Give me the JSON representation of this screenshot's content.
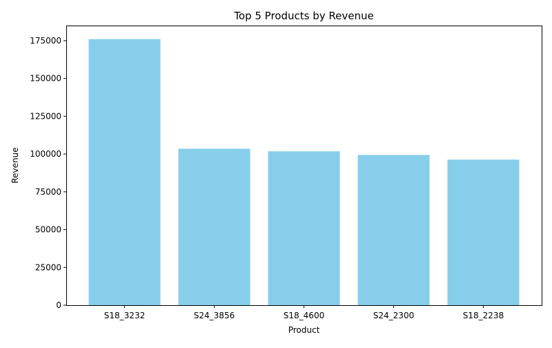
{
  "chart_data": {
    "type": "bar",
    "title": "Top 5 Products by Revenue",
    "xlabel": "Product",
    "ylabel": "Revenue",
    "categories": [
      "S18_3232",
      "S24_3856",
      "S18_4600",
      "S24_2300",
      "S18_2238"
    ],
    "values": [
      176000,
      103500,
      101800,
      99400,
      96300
    ],
    "ylim": [
      0,
      185000
    ],
    "yticks": [
      0,
      25000,
      50000,
      75000,
      100000,
      125000,
      150000,
      175000
    ],
    "bar_color": "#87CEEB",
    "grid": false,
    "legend": false
  }
}
